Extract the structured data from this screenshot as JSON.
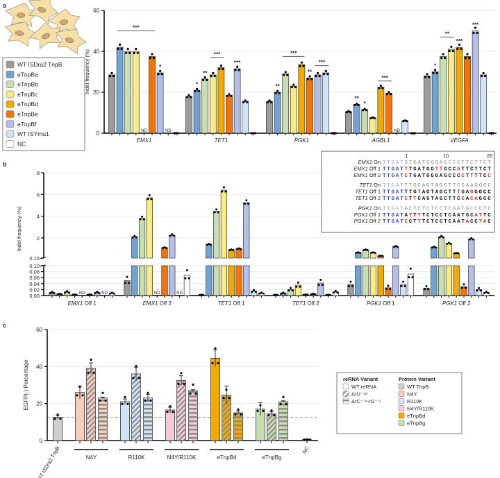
{
  "panel_labels": {
    "a": "a",
    "b": "b",
    "c": "c"
  },
  "chart_data": [
    {
      "panel": "a",
      "type": "bar",
      "ylabel": "Indel frequency (%)",
      "ylim": [
        0,
        60
      ],
      "yticks": [
        "0",
        "20",
        "40",
        "60"
      ],
      "grid": true,
      "nd_label": "ND",
      "legend_placement": "left",
      "legend": [
        {
          "label": "WT ISDra2 TnpB",
          "color": "#9b9b9b"
        },
        {
          "label": "eTnpBa",
          "color": "#6fa3d4"
        },
        {
          "label": "eTnpBb",
          "color": "#c6dfb1"
        },
        {
          "label": "eTnpBc",
          "color": "#f8ec82"
        },
        {
          "label": "eTnpBd",
          "color": "#f2aa00"
        },
        {
          "label": "eTnpBe",
          "color": "#f77300"
        },
        {
          "label": "eTnpBf",
          "color": "#b4bee7"
        },
        {
          "label": "WT ISYmu1",
          "color": "#d0e3f8"
        },
        {
          "label": "NC",
          "color": "#ffffff"
        }
      ],
      "groups": [
        {
          "name": "EMX1",
          "values": [
            28.5,
            42,
            40,
            40,
            null,
            37.5,
            29.5,
            null,
            0
          ],
          "sig": [
            {
              "bar": 6,
              "text": "*"
            }
          ],
          "sig_lines": [
            {
              "from": 1,
              "to": 5,
              "level": 50,
              "text": "***"
            }
          ]
        },
        {
          "name": "TET1",
          "values": [
            18,
            21,
            26.5,
            28.5,
            32,
            18.5,
            31.5,
            15.5,
            0
          ],
          "sig": [
            {
              "bar": 1,
              "text": "*"
            },
            {
              "bar": 2,
              "text": "**"
            },
            {
              "bar": 6,
              "text": "***"
            }
          ],
          "sig_lines": [
            {
              "from": 3,
              "to": 4,
              "level": 37,
              "text": "***"
            }
          ]
        },
        {
          "name": "PGK1",
          "values": [
            15.5,
            20,
            29,
            23,
            33.5,
            27,
            28.5,
            29.5,
            0
          ],
          "sig": [
            {
              "bar": 1,
              "text": "**"
            },
            {
              "bar": 5,
              "text": "**"
            }
          ],
          "sig_lines": [
            {
              "from": 2,
              "to": 4,
              "level": 37.5,
              "text": "***"
            },
            {
              "from": 6,
              "to": 7,
              "level": 33,
              "text": "***"
            }
          ]
        },
        {
          "name": "AGBL1",
          "values": [
            10.5,
            14,
            11.5,
            7.5,
            22.5,
            19.5,
            null,
            6,
            0
          ],
          "sig": [
            {
              "bar": 1,
              "text": "**"
            },
            {
              "bar": 2,
              "text": "*"
            }
          ],
          "sig_lines": [
            {
              "from": 4,
              "to": 5,
              "level": 25.5,
              "text": "***"
            }
          ]
        },
        {
          "name": "VEGFA",
          "values": [
            28,
            30,
            37.5,
            41,
            42,
            37.5,
            50,
            28.5,
            0
          ],
          "sig": [
            {
              "bar": 1,
              "text": "*"
            },
            {
              "bar": 4,
              "text": "***"
            },
            {
              "bar": 6,
              "text": "***"
            }
          ],
          "sig_lines": [
            {
              "from": 2,
              "to": 3,
              "level": 47,
              "text": "**"
            }
          ]
        }
      ]
    },
    {
      "panel": "b",
      "type": "bar",
      "ylabel": "Indel frequency (%)",
      "axis_break": [
        0.1,
        0.15
      ],
      "ylim_lower": [
        0,
        0.1
      ],
      "ylim_upper": [
        0.15,
        8
      ],
      "yticks_lower": [
        "0.00",
        "0.02",
        "0.04",
        "0.06",
        "0.08",
        "0.10"
      ],
      "yticks_upper": [
        "0.15",
        "2",
        "4",
        "6",
        "8"
      ],
      "nd_label": "ND",
      "groups": [
        {
          "gene": "EMX1",
          "site": " Off 1",
          "values": [
            0.01,
            0.005,
            0.012,
            0.003,
            null,
            0.003,
            0.01,
            null,
            0.008
          ]
        },
        {
          "gene": "EMX1",
          "site": " Off 2",
          "values": [
            0.05,
            2.1,
            3.8,
            5.7,
            null,
            1.1,
            2.25,
            null,
            0.068
          ]
        },
        {
          "gene": "TET1",
          "site": " Off 1",
          "values": [
            0.002,
            1.4,
            4.45,
            6.4,
            0.9,
            1.0,
            5.25,
            0.015,
            0.008
          ]
        },
        {
          "gene": "TET1",
          "site": " Off 2",
          "values": [
            0.002,
            0.008,
            0.02,
            0.035,
            0.003,
            0.005,
            0.042,
            0.002,
            0.012
          ]
        },
        {
          "gene": "PGK1",
          "site": " Off 1",
          "values": [
            0.037,
            0.65,
            0.9,
            0.65,
            0.35,
            0.026,
            1.2,
            0.037,
            0.072
          ]
        },
        {
          "gene": "PGK1",
          "site": " Off 2",
          "values": [
            0.025,
            1.15,
            2.1,
            1.5,
            0.6,
            0.03,
            1.9,
            0.02,
            0.01
          ]
        }
      ],
      "inset": {
        "position_ticks": [
          "1",
          "10",
          "20"
        ],
        "rows": [
          {
            "gene": "EMX1",
            "site": " On",
            "seq": "TTGATGTGATGGGAGCCCTTCTTCT",
            "on": true
          },
          {
            "gene": "EMX1",
            "site": " Off 1",
            "seq": "TTGATTTGATGGTTGCCATTCTTCT"
          },
          {
            "gene": "EMX1",
            "site": " Off 2",
            "seq": "TTGATCTGATGGGAGCCCCTTTTCC"
          },
          {
            "gene": "TET1",
            "site": " On",
            "seq": "TTGATTTGCAGTAGCTTCGAAGGCC",
            "on": true
          },
          {
            "gene": "TET1",
            "site": " Off 1",
            "seq": "TTGATTTGTAGTAGCTTTGAGGGCC"
          },
          {
            "gene": "TET1",
            "site": " Off 2",
            "seq": "TTGATCTTCAGTAGCTTCCACAGCC"
          },
          {
            "gene": "PGK1",
            "site": " On",
            "seq": "TTGATACTCTCTCCTCAATGCCCTC",
            "on": true
          },
          {
            "gene": "PGK1",
            "site": " Off 1",
            "seq": "TTGATATTTTCTCCTCAATGCATTC"
          },
          {
            "gene": "PGK1",
            "site": " Off 2",
            "seq": "TTGATCCTTTCTCCTCAATACCTAC"
          }
        ]
      }
    },
    {
      "panel": "c",
      "type": "bar",
      "ylabel": "EGFP(-) Percentage",
      "ylim": [
        0,
        60
      ],
      "yticks": [
        "0",
        "20",
        "40",
        "60"
      ],
      "reference_line": 12.5,
      "groups": [
        {
          "name": "WT ISDra2 TnpB",
          "rotated": true,
          "color": "#cfcfcf",
          "values": [
            12.5
          ]
        },
        {
          "name": "N4Y",
          "color": "#f6cebb",
          "values": [
            26,
            39,
            23
          ]
        },
        {
          "name": "R110K",
          "color": "#d0e3f8",
          "values": [
            21,
            36,
            23
          ]
        },
        {
          "name": "N4Y/R110K",
          "color": "#f6c9d6",
          "values": [
            16.5,
            32.5,
            27
          ]
        },
        {
          "name": "eTnpBd",
          "color": "#f2aa00",
          "values": [
            44.5,
            24.5,
            15
          ]
        },
        {
          "name": "eTnpBg",
          "color": "#c6dfb1",
          "values": [
            17,
            14.5,
            21
          ]
        },
        {
          "name": "NC",
          "rotated": true,
          "color": "#ffffff",
          "values": [
            0.5
          ]
        }
      ],
      "legend_placement": "right",
      "legend": {
        "rerna_title": "reRNA Variant",
        "rerna": [
          {
            "label": "WT reRNA",
            "pattern": "none"
          },
          {
            "label": "ΔrU⁻⁴²",
            "pattern": "diagonal"
          },
          {
            "label": "ΔrC⁻⁷⁴-rG⁻⁷⁵",
            "pattern": "horizontal"
          }
        ],
        "protein_title": "Protein Variant",
        "protein": [
          {
            "label": "WT TnpB",
            "color": "#cfcfcf"
          },
          {
            "label": "N4Y",
            "color": "#f6cebb"
          },
          {
            "label": "R110K",
            "color": "#d0e3f8"
          },
          {
            "label": "N4Y/R110K",
            "color": "#f6c9d6"
          },
          {
            "label": "eTnpBd",
            "color": "#f2aa00"
          },
          {
            "label": "eTnpBg",
            "color": "#c6dfb1"
          }
        ]
      }
    }
  ]
}
